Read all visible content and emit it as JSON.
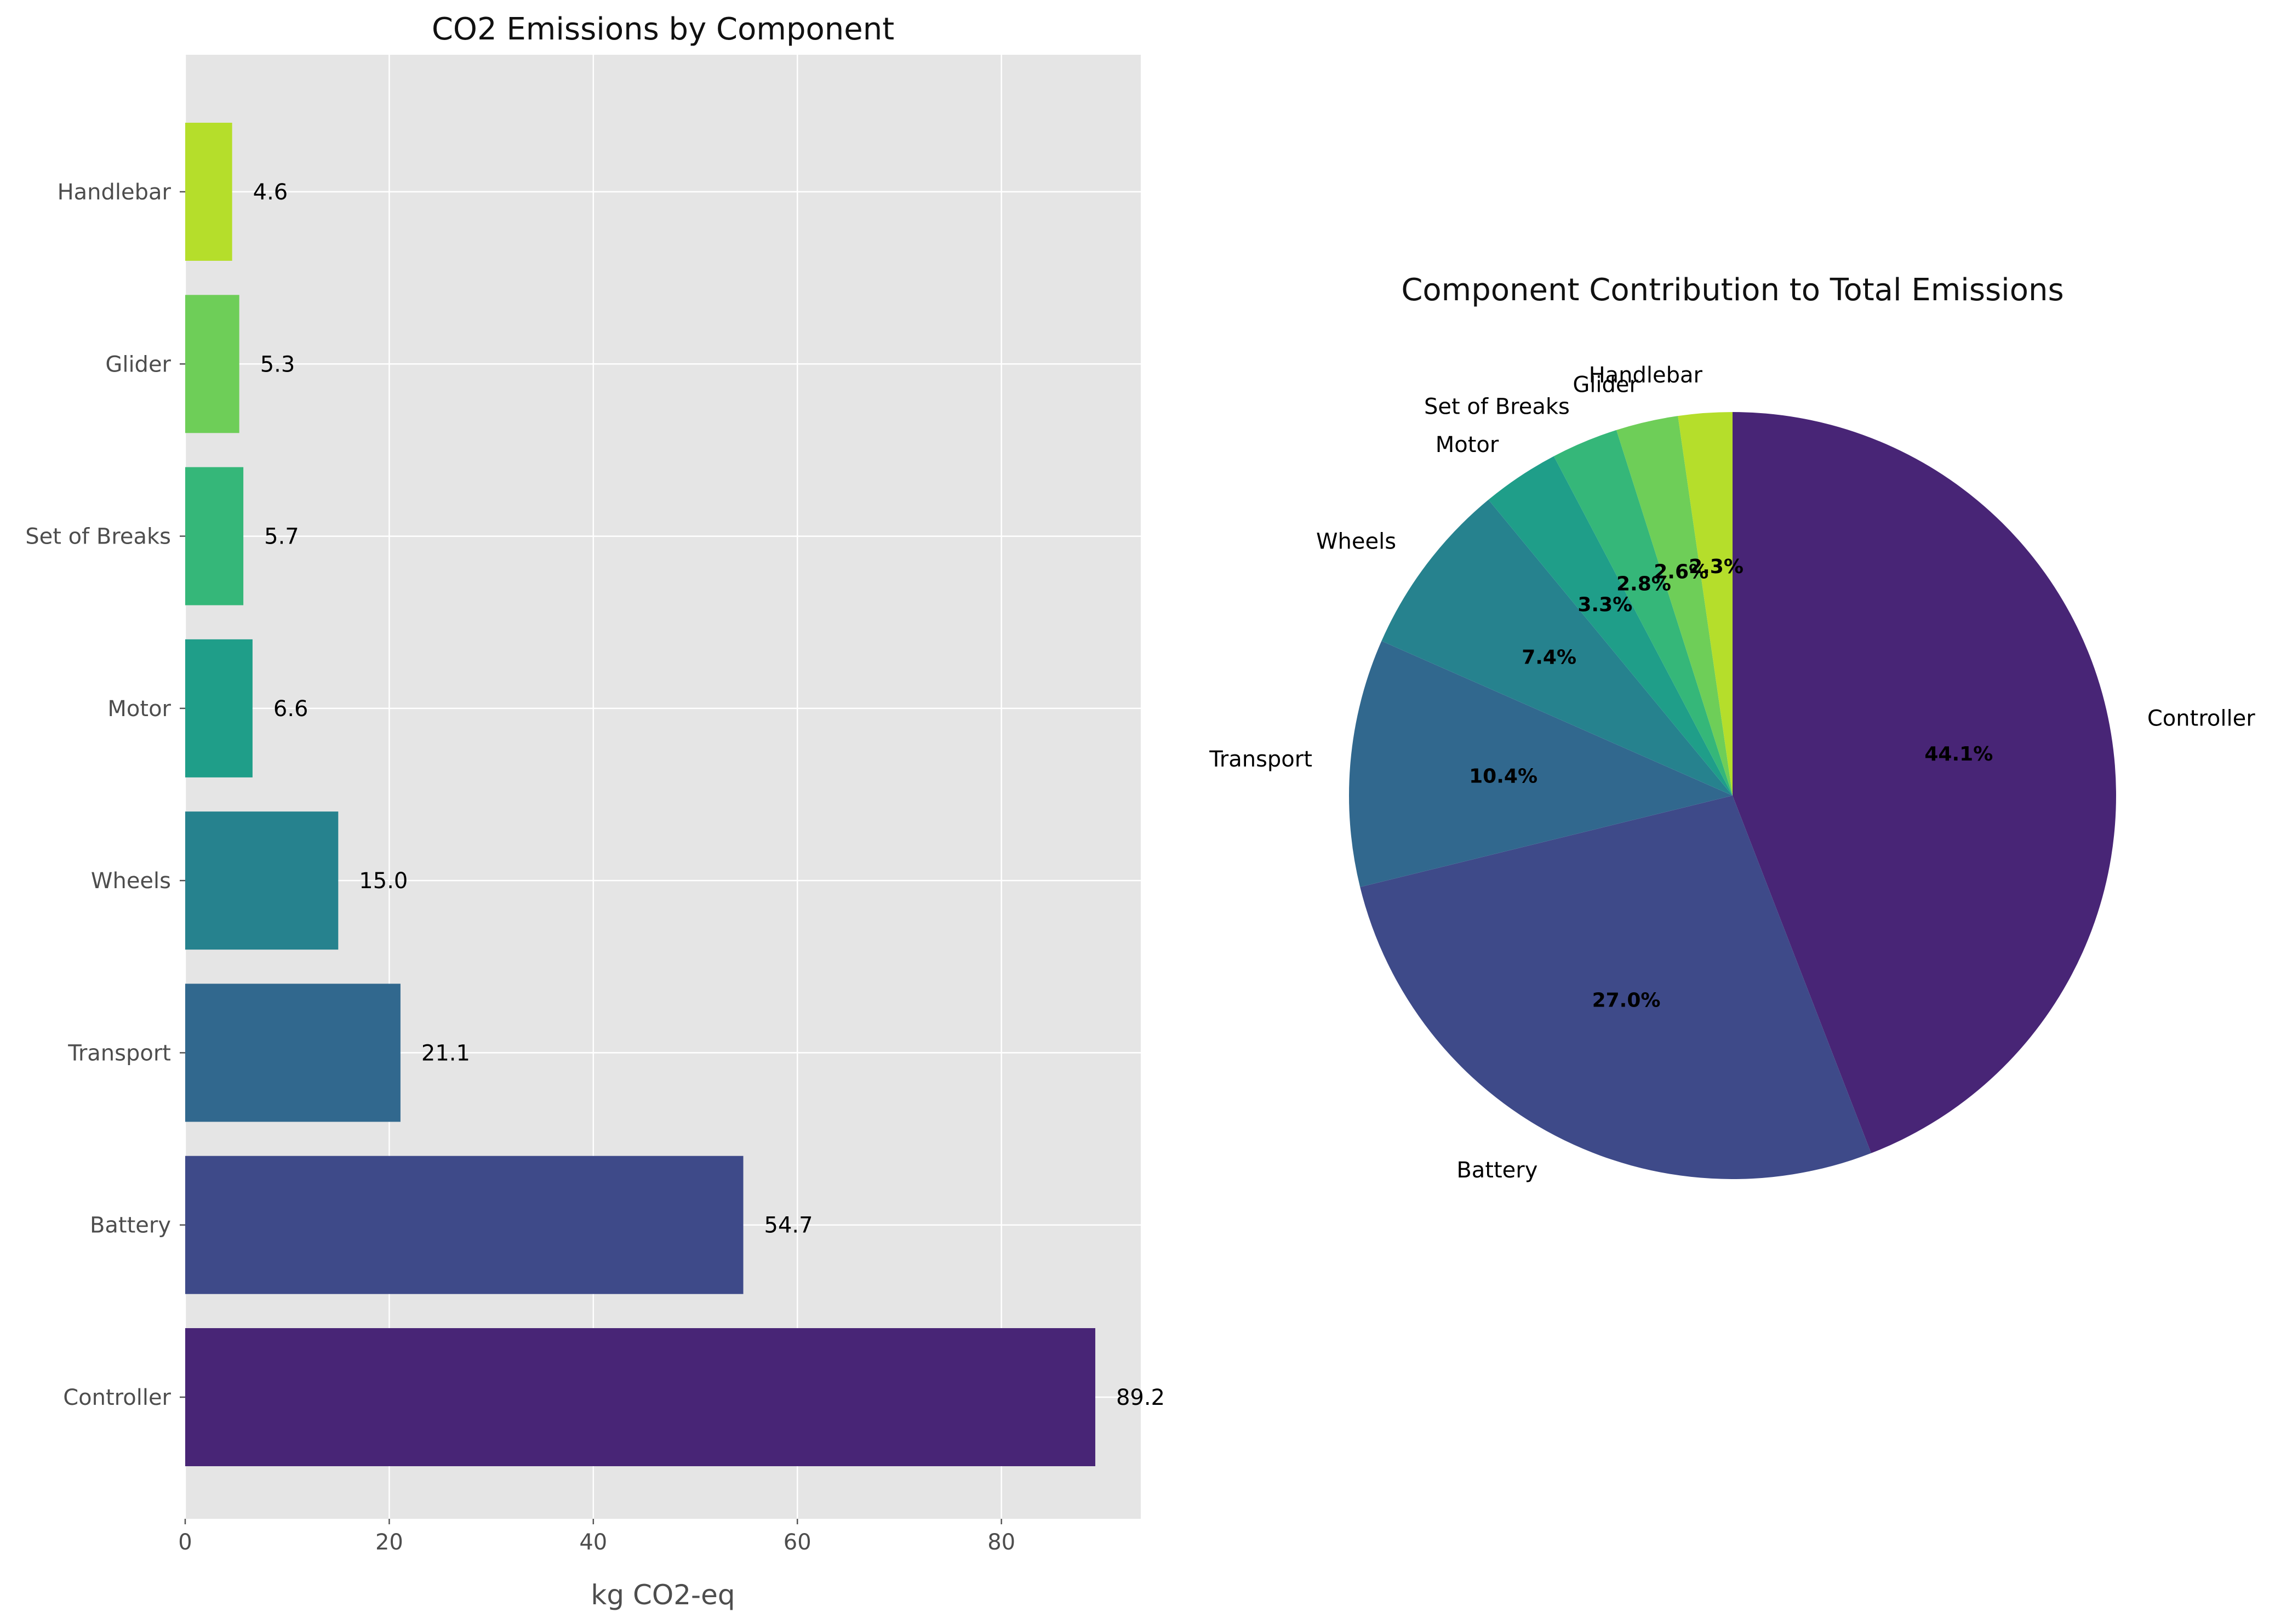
{
  "chart_data": [
    {
      "type": "bar",
      "orientation": "horizontal",
      "title": "CO2 Emissions by Component",
      "xlabel": "kg CO2-eq",
      "ylabel": "",
      "xlim": [
        0,
        93.66
      ],
      "xticks": [
        0,
        20,
        40,
        60,
        80
      ],
      "grid": true,
      "categories": [
        "Controller",
        "Battery",
        "Transport",
        "Wheels",
        "Motor",
        "Set of Breaks",
        "Glider",
        "Handlebar"
      ],
      "values": [
        89.2,
        54.7,
        21.1,
        15.0,
        6.6,
        5.7,
        5.3,
        4.6
      ],
      "value_labels": [
        "89.2",
        "54.7",
        "21.1",
        "15.0",
        "6.6",
        "5.7",
        "5.3",
        "4.6"
      ],
      "colors": [
        "#482576",
        "#3e4a89",
        "#31688e",
        "#26828e",
        "#1f9e89",
        "#35b779",
        "#6ece58",
        "#b5de2b"
      ]
    },
    {
      "type": "pie",
      "title": "Component Contribution to Total Emissions",
      "labels": [
        "Controller",
        "Battery",
        "Transport",
        "Wheels",
        "Motor",
        "Set of Breaks",
        "Glider",
        "Handlebar"
      ],
      "values": [
        89.2,
        54.7,
        21.1,
        15.0,
        6.6,
        5.7,
        5.3,
        4.6
      ],
      "percent_labels": [
        "44.1%",
        "27.0%",
        "10.4%",
        "7.4%",
        "3.3%",
        "2.8%",
        "2.6%",
        "2.3%"
      ],
      "colors": [
        "#482576",
        "#3e4a89",
        "#31688e",
        "#26828e",
        "#1f9e89",
        "#35b779",
        "#6ece58",
        "#b5de2b"
      ],
      "start_angle": 90,
      "direction": "clockwise"
    }
  ]
}
